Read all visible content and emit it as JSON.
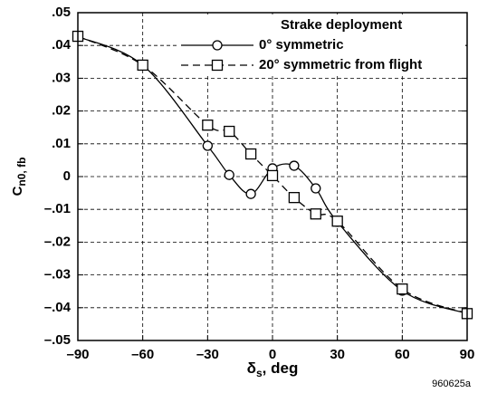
{
  "chart_data": {
    "type": "line",
    "legend_title": "Strake deployment",
    "x_label": {
      "main": "δ",
      "sub": "s",
      "rest": ", deg"
    },
    "y_label": {
      "main": "C",
      "sub": "n0, fb"
    },
    "figure_id": "960625a",
    "x": [
      -90,
      -60,
      -30,
      -20,
      -10,
      0,
      10,
      20,
      30,
      60,
      90
    ],
    "series": [
      {
        "name": "0° symmetric",
        "color": "#000000",
        "marker": "circle",
        "dash": false,
        "values": [
          0.0427,
          0.034,
          0.0094,
          0.0005,
          -0.0053,
          0.0025,
          0.0033,
          -0.0036,
          -0.0138,
          -0.0348,
          -0.0418
        ]
      },
      {
        "name": "20° symmetric from flight",
        "color": "#000000",
        "marker": "square",
        "dash": true,
        "values": [
          0.0428,
          0.034,
          0.0157,
          0.0138,
          0.0069,
          0.0003,
          -0.0064,
          -0.0114,
          -0.0136,
          -0.0343,
          -0.0418
        ]
      }
    ],
    "xlim": [
      -90,
      90
    ],
    "xticks": [
      {
        "value": -90,
        "label": "–90"
      },
      {
        "value": -60,
        "label": "–60"
      },
      {
        "value": -30,
        "label": "–30"
      },
      0,
      30,
      60,
      90
    ],
    "ylim": [
      -0.05,
      0.05
    ],
    "yticks": [
      {
        "value": 0.05,
        "label": ".05"
      },
      {
        "value": 0.04,
        "label": ".04"
      },
      {
        "value": 0.03,
        "label": ".03"
      },
      {
        "value": 0.02,
        "label": ".02"
      },
      {
        "value": 0.01,
        "label": ".01"
      },
      0,
      {
        "value": -0.01,
        "label": "–.01"
      },
      {
        "value": -0.02,
        "label": "–.02"
      },
      {
        "value": -0.03,
        "label": "–.03"
      },
      {
        "value": -0.04,
        "label": "–.04"
      },
      {
        "value": -0.05,
        "label": "–.05"
      }
    ],
    "grid": true,
    "legend": "upper right"
  }
}
